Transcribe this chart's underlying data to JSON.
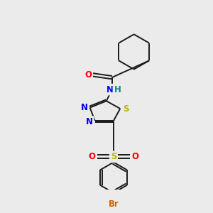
{
  "bg_color": "#ebebeb",
  "bond_color": "#1a1a1a",
  "colors": {
    "O": "#ff0000",
    "N": "#0000ee",
    "S": "#b8b800",
    "H": "#008888",
    "Br": "#cc6600",
    "C": "#1a1a1a"
  },
  "lw": 1.4,
  "fontsize": 8.5
}
